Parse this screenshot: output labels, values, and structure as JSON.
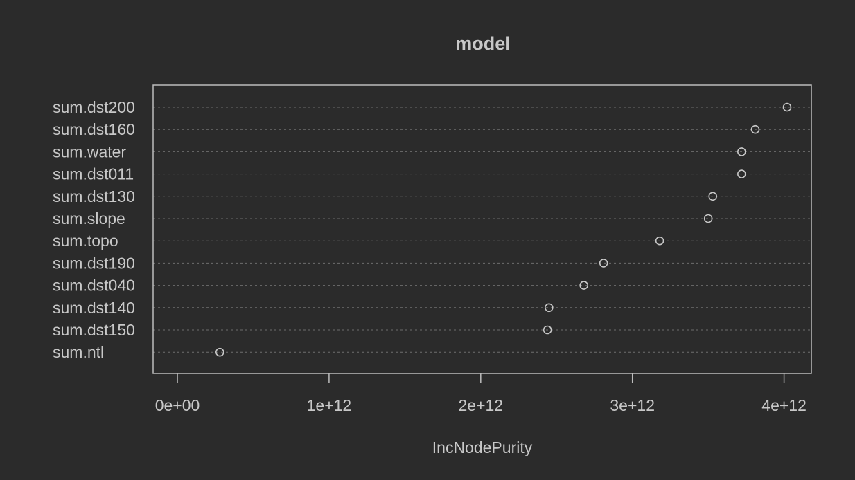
{
  "chart_data": {
    "type": "scatter",
    "title": "model",
    "xlabel": "IncNodePurity",
    "ylabel": "",
    "categories": [
      "sum.dst200",
      "sum.dst160",
      "sum.water",
      "sum.dst011",
      "sum.dst130",
      "sum.slope",
      "sum.topo",
      "sum.dst190",
      "sum.dst040",
      "sum.dst140",
      "sum.dst150",
      "sum.ntl"
    ],
    "values": [
      4020000000000.0,
      3810000000000.0,
      3720000000000.0,
      3720000000000.0,
      3530000000000.0,
      3500000000000.0,
      3180000000000.0,
      2810000000000.0,
      2680000000000.0,
      2450000000000.0,
      2440000000000.0,
      280000000000.0
    ],
    "xticks": [
      0,
      1000000000000.0,
      2000000000000.0,
      3000000000000.0,
      4000000000000.0
    ],
    "xtick_labels": [
      "0e+00",
      "1e+12",
      "2e+12",
      "3e+12",
      "4e+12"
    ],
    "xlim": [
      -160000000000.0,
      4180000000000.0
    ],
    "grid": true,
    "colors": {
      "background": "#2b2b2b",
      "foreground": "#c8c8c8"
    }
  }
}
